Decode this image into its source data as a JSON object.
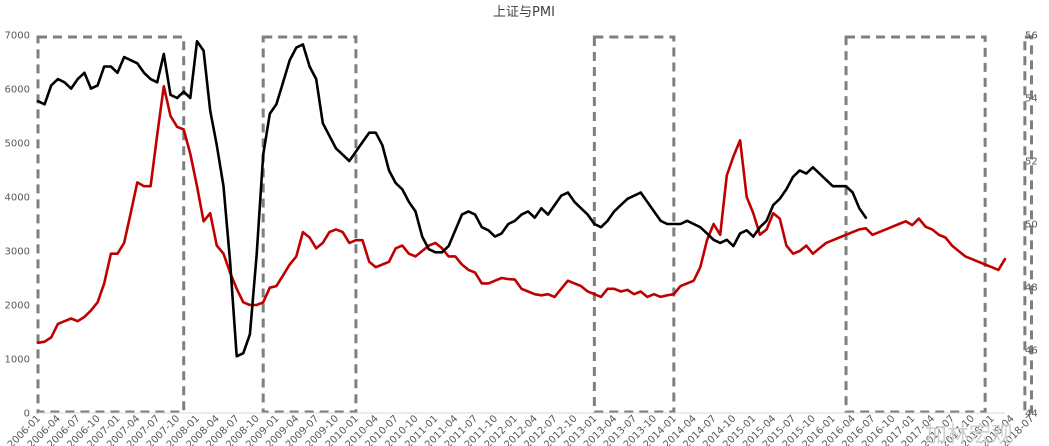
{
  "chart_data": {
    "type": "line",
    "title": "上证与PMI",
    "xlabel": "",
    "ylabel": "",
    "y_left": {
      "range": [
        0,
        7000
      ],
      "ticks": [
        0,
        1000,
        2000,
        3000,
        4000,
        5000,
        6000,
        7000
      ]
    },
    "y_right": {
      "range": [
        44,
        56
      ],
      "ticks": [
        44,
        46,
        48,
        50,
        52,
        54,
        56
      ]
    },
    "grid": false,
    "legend": "none",
    "x_tick_labels": [
      "2006-01",
      "2006-04",
      "2006-07",
      "2006-10",
      "2007-01",
      "2007-04",
      "2007-07",
      "2007-10",
      "2008-01",
      "2008-04",
      "2008-07",
      "2008-10",
      "2009-01",
      "2009-04",
      "2009-07",
      "2009-10",
      "2010-01",
      "2010-04",
      "2010-07",
      "2010-10",
      "2011-01",
      "2011-04",
      "2011-07",
      "2011-10",
      "2012-01",
      "2012-04",
      "2012-07",
      "2012-10",
      "2013-01",
      "2013-04",
      "2013-07",
      "2013-10",
      "2014-01",
      "2014-04",
      "2014-07",
      "2014-10",
      "2015-01",
      "2015-04",
      "2015-07",
      "2015-10",
      "2016-01",
      "2016-04",
      "2016-07",
      "2016-10",
      "2017-01",
      "2017-04",
      "2017-07",
      "2017-10",
      "2018-01",
      "2018-04",
      "2018-07"
    ],
    "start_month": "2006-01",
    "series": [
      {
        "name": "",
        "axis": "left",
        "color": "#c00000",
        "values": [
          1300,
          1320,
          1400,
          1650,
          1700,
          1750,
          1700,
          1780,
          1900,
          2050,
          2400,
          2950,
          2950,
          3150,
          3700,
          4270,
          4200,
          4200,
          5150,
          6050,
          5500,
          5300,
          5250,
          4800,
          4200,
          3550,
          3700,
          3100,
          2950,
          2600,
          2300,
          2050,
          2000,
          2000,
          2050,
          2320,
          2350,
          2550,
          2750,
          2900,
          3350,
          3250,
          3050,
          3150,
          3350,
          3400,
          3350,
          3150,
          3200,
          3200,
          2800,
          2700,
          2750,
          2800,
          3050,
          3100,
          2950,
          2900,
          3000,
          3100,
          3150,
          3050,
          2900,
          2900,
          2750,
          2650,
          2600,
          2400,
          2400,
          2450,
          2500,
          2480,
          2470,
          2300,
          2250,
          2200,
          2180,
          2200,
          2150,
          2300,
          2450,
          2400,
          2350,
          2250,
          2200,
          2150,
          2300,
          2300,
          2250,
          2280,
          2200,
          2250,
          2150,
          2200,
          2150,
          2180,
          2200,
          2350,
          2400,
          2450,
          2700,
          3200,
          3500,
          3300,
          4400,
          4750,
          5050,
          4000,
          3700,
          3300,
          3400,
          3700,
          3600,
          3100,
          2950,
          3000,
          3100,
          2950,
          3050,
          3150,
          3200,
          3250,
          3300,
          3350,
          3400,
          3420,
          3300,
          3350,
          3400,
          3450,
          3500,
          3550,
          3480,
          3600,
          3450,
          3400,
          3300,
          3250,
          3100,
          3000,
          2900,
          2850,
          2800,
          2750,
          2700,
          2650,
          2850
        ]
      },
      {
        "name": "",
        "axis": "right",
        "color": "#000000",
        "values": [
          53.9,
          53.8,
          54.4,
          54.6,
          54.5,
          54.3,
          54.6,
          54.8,
          54.3,
          54.4,
          55.0,
          55.0,
          54.8,
          55.3,
          55.2,
          55.1,
          54.8,
          54.6,
          54.5,
          55.4,
          54.1,
          54.0,
          54.2,
          54.0,
          55.8,
          55.5,
          53.6,
          52.5,
          51.2,
          48.8,
          45.8,
          45.9,
          46.5,
          49.0,
          52.2,
          53.5,
          53.8,
          54.5,
          55.2,
          55.6,
          55.7,
          55.0,
          54.6,
          53.2,
          52.8,
          52.4,
          52.2,
          52.0,
          52.3,
          52.6,
          52.9,
          52.9,
          52.5,
          51.7,
          51.3,
          51.1,
          50.7,
          50.4,
          49.6,
          49.2,
          49.1,
          49.1,
          49.3,
          49.8,
          50.3,
          50.4,
          50.3,
          49.9,
          49.8,
          49.6,
          49.7,
          50.0,
          50.1,
          50.3,
          50.4,
          50.2,
          50.5,
          50.3,
          50.6,
          50.9,
          51.0,
          50.7,
          50.5,
          50.3,
          50.0,
          49.9,
          50.1,
          50.4,
          50.6,
          50.8,
          50.9,
          51.0,
          50.7,
          50.4,
          50.1,
          50.0,
          50.0,
          50.0,
          50.1,
          50.0,
          49.9,
          49.7,
          49.5,
          49.4,
          49.5,
          49.3,
          49.7,
          49.8,
          49.6,
          49.9,
          50.1,
          50.6,
          50.8,
          51.1,
          51.5,
          51.7,
          51.6,
          51.8,
          51.6,
          51.4,
          51.2,
          51.2,
          51.2,
          51.0,
          50.5,
          50.2
        ]
      }
    ],
    "shaded_periods": [
      {
        "start": "2006-01",
        "end": "2007-11"
      },
      {
        "start": "2008-11",
        "end": "2010-01"
      },
      {
        "start": "2013-01",
        "end": "2014-01"
      },
      {
        "start": "2016-03",
        "end": "2017-12"
      },
      {
        "start": "2018-06",
        "end": "2018-07"
      }
    ]
  },
  "watermark": "加林宏观"
}
